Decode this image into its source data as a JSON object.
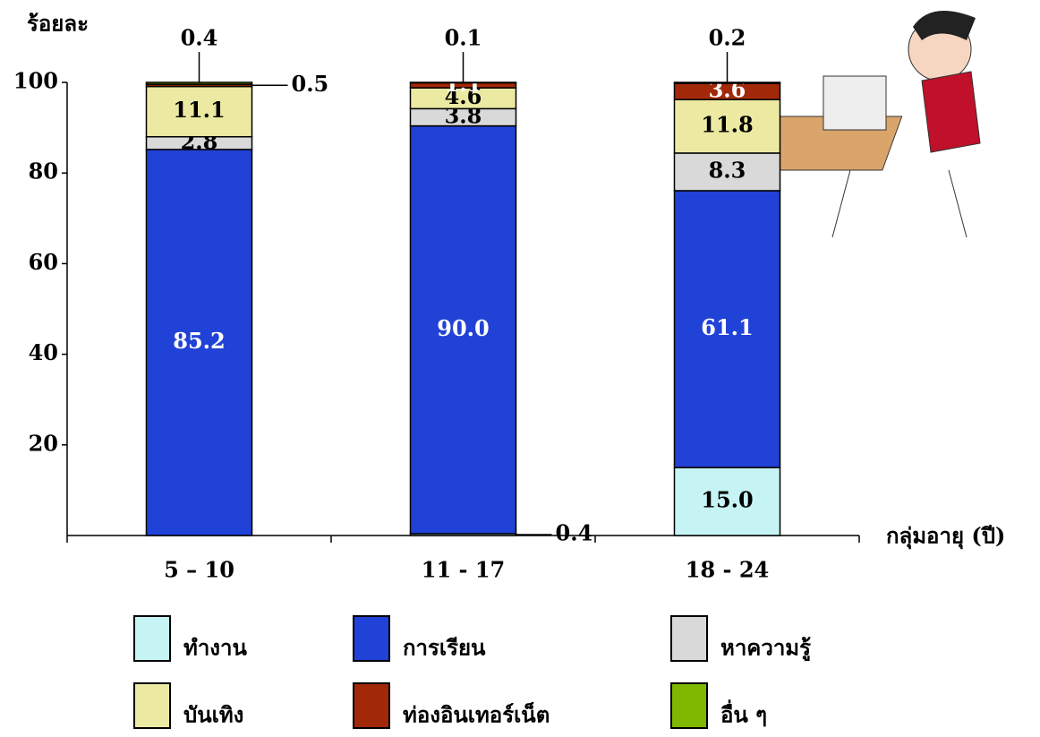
{
  "chart_data": {
    "type": "stacked-bar",
    "y_label": "ร้อยละ",
    "x_label": "กลุ่มอายุ (ปี)",
    "categories": [
      "5 – 10",
      "11 - 17",
      "18 - 24"
    ],
    "ylim": [
      0,
      100
    ],
    "yticks": [
      20,
      40,
      60,
      80,
      100
    ],
    "legend": "bottom",
    "series": [
      {
        "name": "ทำงาน",
        "color": "#c6f4f4",
        "values": [
          null,
          0.4,
          15.0
        ],
        "value_labels": [
          null,
          "0.4",
          "15.0"
        ]
      },
      {
        "name": "การเรียน",
        "color": "#2142d6",
        "values": [
          85.2,
          90.0,
          61.1
        ],
        "value_labels": [
          "85.2",
          "90.0",
          "61.1"
        ]
      },
      {
        "name": "หาความรู้",
        "color": "#d9d9d9",
        "values": [
          2.8,
          3.8,
          8.3
        ],
        "value_labels": [
          "2.8",
          "3.8",
          "8.3"
        ]
      },
      {
        "name": "บันเทิง",
        "color": "#ece9a2",
        "values": [
          11.1,
          4.6,
          11.8
        ],
        "value_labels": [
          "11.1",
          "4.6",
          "11.8"
        ]
      },
      {
        "name": "ท่องอินเทอร์เน็ต",
        "color": "#a1290a",
        "values": [
          0.5,
          1.1,
          3.6
        ],
        "value_labels": [
          "0.5",
          "1.1",
          "3.6"
        ]
      },
      {
        "name": "อื่น ๆ",
        "color": "#7fb800",
        "values": [
          0.4,
          0.1,
          0.2
        ],
        "value_labels": [
          "0.4",
          "0.1",
          "0.2"
        ]
      }
    ]
  }
}
